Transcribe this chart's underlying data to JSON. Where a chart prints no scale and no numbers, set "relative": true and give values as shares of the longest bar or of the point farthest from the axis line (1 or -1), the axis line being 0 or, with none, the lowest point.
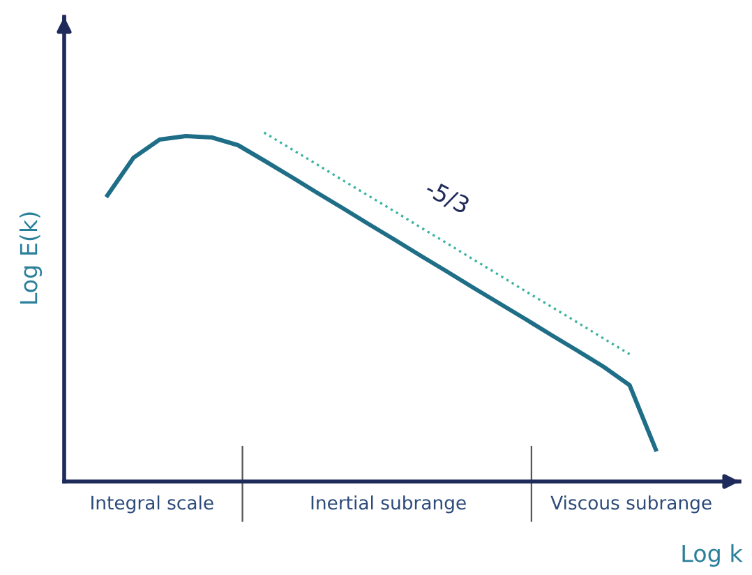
{
  "chart_data": {
    "type": "line",
    "relative": true,
    "xlabel": "Log k",
    "ylabel": "Log E(k)",
    "categories": [
      null,
      null,
      null,
      null,
      null,
      null,
      null,
      null,
      null,
      null,
      null,
      null,
      null,
      null,
      null,
      null,
      null,
      null,
      null,
      null,
      null,
      null
    ],
    "series": [
      {
        "color": "#1f6e87",
        "values": [
          0.82,
          0.928,
          0.98,
          0.99,
          0.986,
          0.964,
          0.92,
          0.875,
          0.829,
          0.784,
          0.738,
          0.693,
          0.647,
          0.602,
          0.556,
          0.511,
          0.466,
          0.42,
          0.375,
          0.329,
          0.276,
          0.092
        ]
      },
      {
        "type": "line",
        "line_style": "dotted",
        "color": "#3bb3a0",
        "values": [
          null,
          null,
          null,
          null,
          null,
          null,
          1.0,
          0.955,
          0.91,
          0.864,
          0.819,
          0.774,
          0.728,
          0.683,
          0.637,
          0.592,
          0.546,
          0.501,
          0.456,
          0.41,
          0.365,
          null
        ]
      }
    ],
    "annotations": [
      "-5/3",
      "Integral scale",
      "Inertial subrange",
      "Viscous subrange"
    ],
    "legend": false
  }
}
